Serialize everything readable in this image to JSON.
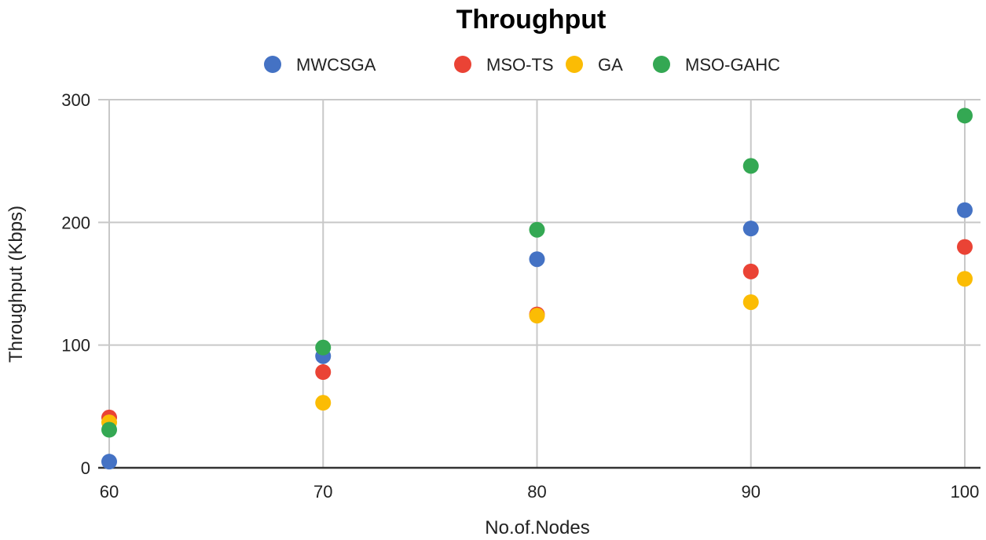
{
  "chart_data": {
    "type": "scatter",
    "title": "Throughput",
    "xlabel": "No.of.Nodes",
    "ylabel": "Throughput (Kbps)",
    "x": [
      60,
      70,
      80,
      90,
      100
    ],
    "xlim": [
      60,
      100
    ],
    "ylim": [
      0,
      300
    ],
    "xticks": [
      "60",
      "70",
      "80",
      "90",
      "100"
    ],
    "yticks": [
      "0",
      "100",
      "200",
      "300"
    ],
    "grid": true,
    "legend_position": "top",
    "series": [
      {
        "name": "MWCSGA",
        "color": "#4472C4",
        "values": [
          5,
          91,
          170,
          195,
          210
        ]
      },
      {
        "name": "MSO-TS",
        "color": "#EA4335",
        "values": [
          41,
          78,
          125,
          160,
          180
        ]
      },
      {
        "name": "GA",
        "color": "#FBBC04",
        "values": [
          37,
          53,
          124,
          135,
          154
        ]
      },
      {
        "name": "MSO-GAHC",
        "color": "#34A853",
        "values": [
          31,
          98,
          194,
          246,
          287
        ]
      }
    ]
  }
}
